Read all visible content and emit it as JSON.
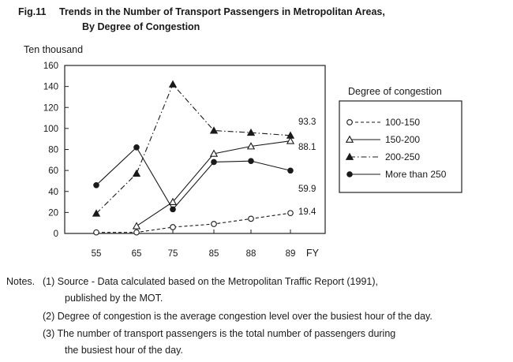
{
  "figure": {
    "number": "Fig.11",
    "title_line1": "Trends in the Number of Transport Passengers in Metropolitan Areas,",
    "title_line2": "By Degree of Congestion"
  },
  "chart_data": {
    "type": "line",
    "title": "Trends in the Number of Transport Passengers in Metropolitan Areas, By Degree of Congestion",
    "ylabel": "Ten thousand",
    "xlabel": "FY",
    "categories": [
      "55",
      "65",
      "75",
      "85",
      "88",
      "89"
    ],
    "ylim": [
      0,
      160
    ],
    "yticks": [
      0,
      20,
      40,
      60,
      80,
      100,
      120,
      140,
      160
    ],
    "grid": false,
    "legend_title": "Degree of congestion",
    "legend_position": "right",
    "series": [
      {
        "name": "100-150",
        "marker": "open-circle",
        "dash": "dashed",
        "values": [
          1,
          1,
          6,
          9,
          14,
          19.4
        ],
        "end_label": "19.4"
      },
      {
        "name": "150-200",
        "marker": "open-triangle",
        "dash": "solid",
        "values": [
          null,
          7,
          30,
          76,
          83,
          88.1
        ],
        "end_label": "88.1"
      },
      {
        "name": "200-250",
        "marker": "filled-triangle",
        "dash": "dashdot",
        "values": [
          19,
          57,
          142,
          98,
          96,
          93.3
        ],
        "end_label": "93.3"
      },
      {
        "name": "More than 250",
        "marker": "filled-circle",
        "dash": "solid",
        "values": [
          46,
          82,
          23,
          68,
          69,
          59.9
        ],
        "end_label": "59.9"
      }
    ]
  },
  "notes": {
    "prefix": "Notes.",
    "n1_line1": "(1) Source - Data calculated based on the Metropolitan Traffic Report (1991),",
    "n1_line2": "published by the MOT.",
    "n2": "(2) Degree of congestion is the average congestion level over the busiest hour of the day.",
    "n3_line1": "(3) The number of transport passengers is the total number of passengers during",
    "n3_line2": "the busiest hour of the day."
  }
}
